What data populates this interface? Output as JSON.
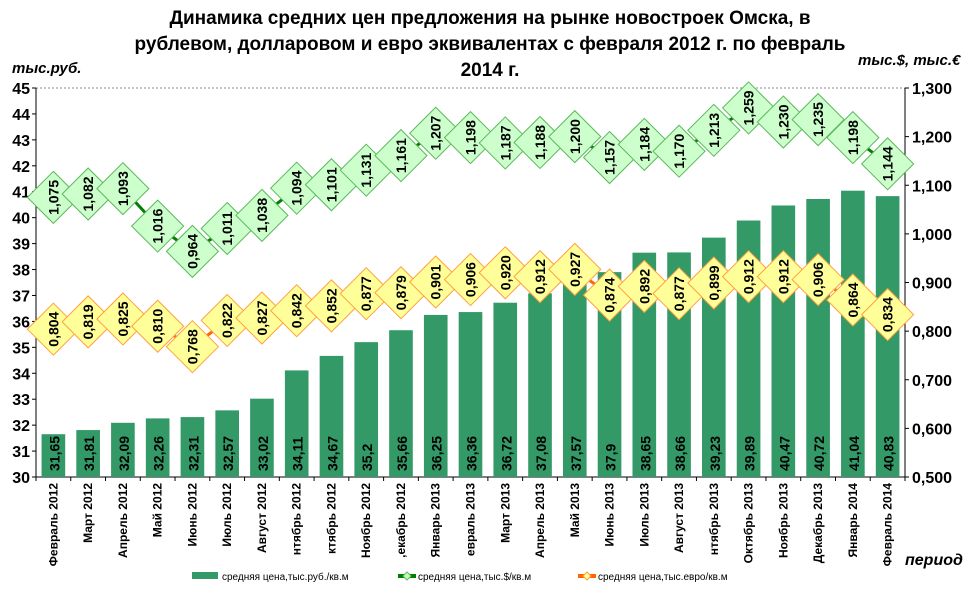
{
  "chart_data": {
    "type": "bar+line",
    "title": "Динамика  средних цен предложения на рынке  новостроек Омска, в рублевом, долларовом и евро эквивалентах с февраля 2012 г. по февраль 2014 г.",
    "ylabel_left": "тыс.руб.",
    "ylabel_right": "тыс.$, тыс.€",
    "xlabel": "период",
    "ylim_left": [
      30,
      45
    ],
    "ylim_right": [
      0.5,
      1.3
    ],
    "left_ticks": [
      "30",
      "31",
      "32",
      "33",
      "34",
      "35",
      "36",
      "37",
      "38",
      "39",
      "40",
      "41",
      "42",
      "43",
      "44",
      "45"
    ],
    "right_ticks": [
      "0,500",
      "0,600",
      "0,700",
      "0,800",
      "0,900",
      "1,000",
      "1,100",
      "1,200",
      "1,300"
    ],
    "legend_position": "bottom",
    "categories": [
      "Февраль 2012",
      "Март 2012",
      "Апрель 2012",
      "Май 2012",
      "Июнь 2012",
      "Июль 2012",
      "Август 2012",
      "нтябрь 2012",
      "ктябрь 2012",
      "Ноябрь 2012",
      ",екабрь 2012",
      "Январь 2013",
      "евраль 2013",
      "Март 2013",
      "Апрель 2013",
      "Май 2013",
      "Июнь 2013",
      "Июль 2013",
      "Август 2013",
      "нтябрь 2013",
      "Октябрь 2013",
      "Ноябрь 2013",
      "Декабрь 2013",
      "Январь 2014",
      "Февраль 2014"
    ],
    "series": [
      {
        "name": "средняя  цена,тыс.руб./кв.м",
        "type": "bar",
        "axis": "left",
        "color": "#339966",
        "values": [
          31.65,
          31.81,
          32.09,
          32.26,
          32.31,
          32.57,
          33.02,
          34.11,
          34.67,
          35.2,
          35.66,
          36.25,
          36.36,
          36.72,
          37.08,
          37.57,
          37.9,
          38.65,
          38.66,
          39.23,
          39.89,
          40.47,
          40.72,
          41.04,
          40.83
        ],
        "labels": [
          "31,65",
          "31,81",
          "32,09",
          "32,26",
          "32,31",
          "32,57",
          "33,02",
          "34,11",
          "34,67",
          "35,2",
          "35,66",
          "36,25",
          "36,36",
          "36,72",
          "37,08",
          "37,57",
          "37,9",
          "38,65",
          "38,66",
          "39,23",
          "39,89",
          "40,47",
          "40,72",
          "41,04",
          "40,83"
        ]
      },
      {
        "name": "средняя  цена,тыс.$/кв.м",
        "type": "line",
        "axis": "right",
        "color": "#008000",
        "label_fill": "#ccffcc",
        "label_border": "#5cb85c",
        "values": [
          1.075,
          1.082,
          1.093,
          1.016,
          0.964,
          1.011,
          1.038,
          1.094,
          1.101,
          1.131,
          1.161,
          1.207,
          1.198,
          1.187,
          1.188,
          1.2,
          1.157,
          1.184,
          1.17,
          1.213,
          1.259,
          1.23,
          1.235,
          1.198,
          1.144
        ],
        "labels": [
          "1,075",
          "1,082",
          "1,093",
          "1,016",
          "0,964",
          "1,011",
          "1,038",
          "1,094",
          "1,101",
          "1,131",
          "1,161",
          "1,207",
          "1,198",
          "1,187",
          "1,188",
          "1,200",
          "1,157",
          "1,184",
          "1,170",
          "1,213",
          "1,259",
          "1,230",
          "1,235",
          "1,198",
          "1,144"
        ]
      },
      {
        "name": "средняя  цена,тыс.евро/кв.м",
        "type": "line",
        "axis": "right",
        "color": "#ff6600",
        "label_fill": "#ffff99",
        "label_border": "#ffa040",
        "values": [
          0.804,
          0.819,
          0.825,
          0.81,
          0.768,
          0.822,
          0.827,
          0.842,
          0.852,
          0.877,
          0.879,
          0.901,
          0.906,
          0.92,
          0.912,
          0.927,
          0.874,
          0.892,
          0.877,
          0.899,
          0.912,
          0.912,
          0.906,
          0.864,
          0.834
        ],
        "labels": [
          "0,804",
          "0,819",
          "0,825",
          "0,810",
          "0,768",
          "0,822",
          "0,827",
          "0,842",
          "0,852",
          "0,877",
          "0,879",
          "0,901",
          "0,906",
          "0,920",
          "0,912",
          "0,927",
          "0,874",
          "0,892",
          "0,877",
          "0,899",
          "0,912",
          "0,912",
          "0,906",
          "0,864",
          "0,834"
        ]
      }
    ]
  }
}
